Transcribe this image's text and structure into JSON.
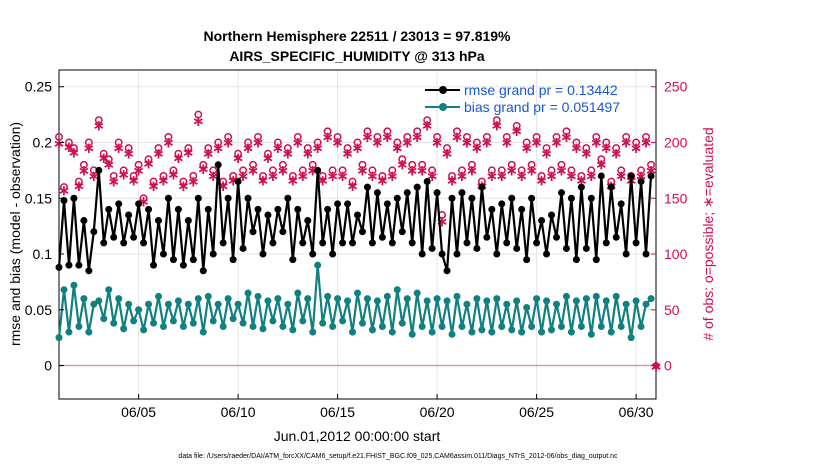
{
  "chart_data": {
    "type": "line",
    "title_line1": "Northern Hemisphere 22511 / 23013 = 97.819%",
    "title_line2": "AIRS_SPECIFIC_HUMIDITY @ 313 hPa",
    "xlabel": "Jun.01,2012 00:00:00 start",
    "ylabel": "rmse and bias (model - observation)",
    "y2label": "# of obs: o=possible; ∗=evaluated",
    "footer": "data file: /Users/raeder/DAI/ATM_forcXX/CAM6_setup/f.e21.FHIST_BGC.f09_025.CAM6assim.011/Diags_NTrS_2012-06/obs_diag_output.nc",
    "xlim": [
      1.0,
      31.0
    ],
    "ylim": [
      -0.03,
      0.265
    ],
    "y2lim": [
      -30,
      265
    ],
    "grid": true,
    "legend_position": "top-right",
    "x_ticks": [
      {
        "value": 5,
        "label": "06/05"
      },
      {
        "value": 10,
        "label": "06/10"
      },
      {
        "value": 15,
        "label": "06/15"
      },
      {
        "value": 20,
        "label": "06/20"
      },
      {
        "value": 25,
        "label": "06/25"
      },
      {
        "value": 30,
        "label": "06/30"
      }
    ],
    "y_ticks": [
      {
        "value": 0,
        "label": "0"
      },
      {
        "value": 0.05,
        "label": "0.05"
      },
      {
        "value": 0.1,
        "label": "0.1"
      },
      {
        "value": 0.15,
        "label": "0.15"
      },
      {
        "value": 0.2,
        "label": "0.2"
      },
      {
        "value": 0.25,
        "label": "0.25"
      }
    ],
    "y2_ticks": [
      {
        "value": 0,
        "label": "0"
      },
      {
        "value": 50,
        "label": "50"
      },
      {
        "value": 100,
        "label": "100"
      },
      {
        "value": 150,
        "label": "150"
      },
      {
        "value": 200,
        "label": "200"
      },
      {
        "value": 250,
        "label": "250"
      }
    ],
    "x": [
      1.0,
      1.25,
      1.5,
      1.75,
      2.0,
      2.25,
      2.5,
      2.75,
      3.0,
      3.25,
      3.5,
      3.75,
      4.0,
      4.25,
      4.5,
      4.75,
      5.0,
      5.25,
      5.5,
      5.75,
      6.0,
      6.25,
      6.5,
      6.75,
      7.0,
      7.25,
      7.5,
      7.75,
      8.0,
      8.25,
      8.5,
      8.75,
      9.0,
      9.25,
      9.5,
      9.75,
      10.0,
      10.25,
      10.5,
      10.75,
      11.0,
      11.25,
      11.5,
      11.75,
      12.0,
      12.25,
      12.5,
      12.75,
      13.0,
      13.25,
      13.5,
      13.75,
      14.0,
      14.25,
      14.5,
      14.75,
      15.0,
      15.25,
      15.5,
      15.75,
      16.0,
      16.25,
      16.5,
      16.75,
      17.0,
      17.25,
      17.5,
      17.75,
      18.0,
      18.25,
      18.5,
      18.75,
      19.0,
      19.25,
      19.5,
      19.75,
      20.0,
      20.25,
      20.5,
      20.75,
      21.0,
      21.25,
      21.5,
      21.75,
      22.0,
      22.25,
      22.5,
      22.75,
      23.0,
      23.25,
      23.5,
      23.75,
      24.0,
      24.25,
      24.5,
      24.75,
      25.0,
      25.25,
      25.5,
      25.75,
      26.0,
      26.25,
      26.5,
      26.75,
      27.0,
      27.25,
      27.5,
      27.75,
      28.0,
      28.25,
      28.5,
      28.75,
      29.0,
      29.25,
      29.5,
      29.75,
      30.0,
      30.25,
      30.5,
      30.75
    ],
    "series": [
      {
        "name": "rmse grand pr = 0.13442",
        "color": "#000000",
        "marker": "filled-circle",
        "values": [
          0.088,
          0.148,
          0.09,
          0.15,
          0.09,
          0.13,
          0.085,
          0.12,
          0.175,
          0.11,
          0.14,
          0.115,
          0.145,
          0.11,
          0.135,
          0.115,
          0.145,
          0.11,
          0.14,
          0.09,
          0.13,
          0.1,
          0.15,
          0.095,
          0.14,
          0.09,
          0.13,
          0.095,
          0.15,
          0.085,
          0.14,
          0.1,
          0.18,
          0.11,
          0.15,
          0.095,
          0.165,
          0.105,
          0.15,
          0.12,
          0.14,
          0.1,
          0.135,
          0.11,
          0.14,
          0.12,
          0.15,
          0.095,
          0.14,
          0.11,
          0.13,
          0.1,
          0.175,
          0.11,
          0.14,
          0.1,
          0.145,
          0.11,
          0.145,
          0.11,
          0.135,
          0.12,
          0.16,
          0.11,
          0.155,
          0.115,
          0.145,
          0.11,
          0.15,
          0.12,
          0.155,
          0.11,
          0.16,
          0.1,
          0.165,
          0.105,
          0.155,
          0.1,
          0.085,
          0.15,
          0.1,
          0.155,
          0.11,
          0.15,
          0.105,
          0.16,
          0.115,
          0.14,
          0.1,
          0.145,
          0.11,
          0.15,
          0.105,
          0.14,
          0.095,
          0.15,
          0.11,
          0.13,
          0.1,
          0.135,
          0.115,
          0.155,
          0.105,
          0.15,
          0.095,
          0.16,
          0.105,
          0.15,
          0.095,
          0.17,
          0.11,
          0.16,
          0.115,
          0.145,
          0.1,
          0.17,
          0.11,
          0.165,
          0.1,
          0.17
        ]
      },
      {
        "name": "bias grand pr = 0.051497",
        "color": "#118080",
        "marker": "filled-circle",
        "values": [
          0.025,
          0.068,
          0.03,
          0.072,
          0.035,
          0.06,
          0.03,
          0.055,
          0.058,
          0.042,
          0.068,
          0.038,
          0.06,
          0.033,
          0.055,
          0.04,
          0.05,
          0.032,
          0.055,
          0.038,
          0.062,
          0.035,
          0.055,
          0.04,
          0.058,
          0.035,
          0.055,
          0.038,
          0.06,
          0.03,
          0.062,
          0.04,
          0.055,
          0.035,
          0.06,
          0.042,
          0.055,
          0.038,
          0.065,
          0.035,
          0.062,
          0.033,
          0.058,
          0.04,
          0.06,
          0.035,
          0.055,
          0.032,
          0.065,
          0.04,
          0.06,
          0.03,
          0.09,
          0.038,
          0.062,
          0.035,
          0.06,
          0.04,
          0.058,
          0.03,
          0.065,
          0.038,
          0.06,
          0.032,
          0.058,
          0.035,
          0.062,
          0.03,
          0.068,
          0.038,
          0.06,
          0.028,
          0.065,
          0.035,
          0.058,
          0.03,
          0.06,
          0.035,
          0.058,
          0.028,
          0.062,
          0.035,
          0.055,
          0.03,
          0.06,
          0.032,
          0.058,
          0.03,
          0.06,
          0.035,
          0.055,
          0.032,
          0.058,
          0.03,
          0.052,
          0.035,
          0.06,
          0.03,
          0.058,
          0.032,
          0.055,
          0.035,
          0.062,
          0.03,
          0.058,
          0.035,
          0.06,
          0.028,
          0.062,
          0.035,
          0.058,
          0.03,
          0.062,
          0.035,
          0.055,
          0.025,
          0.058,
          0.035,
          0.055,
          0.06
        ]
      }
    ],
    "obs_possible_o": {
      "name": "o=possible",
      "color": "#d0104c",
      "values": [
        205,
        160,
        200,
        195,
        165,
        180,
        200,
        175,
        220,
        190,
        185,
        170,
        200,
        175,
        195,
        170,
        180,
        150,
        185,
        165,
        195,
        170,
        205,
        175,
        190,
        165,
        195,
        170,
        225,
        180,
        195,
        175,
        200,
        165,
        205,
        170,
        190,
        175,
        200,
        180,
        205,
        170,
        190,
        175,
        200,
        180,
        195,
        170,
        205,
        175,
        195,
        180,
        200,
        170,
        210,
        175,
        205,
        175,
        195,
        165,
        200,
        180,
        210,
        175,
        205,
        170,
        210,
        175,
        200,
        185,
        205,
        180,
        210,
        180,
        220,
        175,
        205,
        135,
        195,
        170,
        210,
        175,
        205,
        180,
        200,
        165,
        205,
        175,
        220,
        175,
        205,
        180,
        215,
        175,
        200,
        180,
        205,
        170,
        195,
        175,
        205,
        180,
        210,
        175,
        200,
        170,
        195,
        175,
        205,
        185,
        200,
        165,
        195,
        175,
        205,
        170,
        200,
        175,
        205,
        180
      ]
    },
    "obs_evaluated_star": {
      "name": "∗=evaluated",
      "color": "#d0104c",
      "values": [
        200,
        158,
        197,
        192,
        162,
        176,
        196,
        171,
        216,
        187,
        181,
        166,
        196,
        172,
        191,
        167,
        176,
        148,
        182,
        162,
        191,
        167,
        201,
        172,
        187,
        162,
        192,
        166,
        220,
        177,
        191,
        171,
        196,
        162,
        201,
        167,
        187,
        171,
        196,
        176,
        201,
        167,
        187,
        171,
        196,
        176,
        191,
        167,
        201,
        171,
        191,
        176,
        196,
        167,
        206,
        171,
        201,
        171,
        191,
        162,
        196,
        176,
        206,
        171,
        201,
        167,
        206,
        171,
        196,
        181,
        201,
        176,
        206,
        176,
        216,
        171,
        201,
        130,
        191,
        167,
        206,
        171,
        201,
        176,
        196,
        162,
        201,
        171,
        216,
        171,
        201,
        176,
        211,
        171,
        196,
        176,
        201,
        167,
        191,
        171,
        201,
        176,
        206,
        171,
        196,
        167,
        191,
        171,
        201,
        181,
        196,
        162,
        191,
        171,
        201,
        167,
        196,
        171,
        201,
        176
      ]
    },
    "obs_end_marker": {
      "x": 31.0,
      "value": 0,
      "label": "0"
    }
  }
}
